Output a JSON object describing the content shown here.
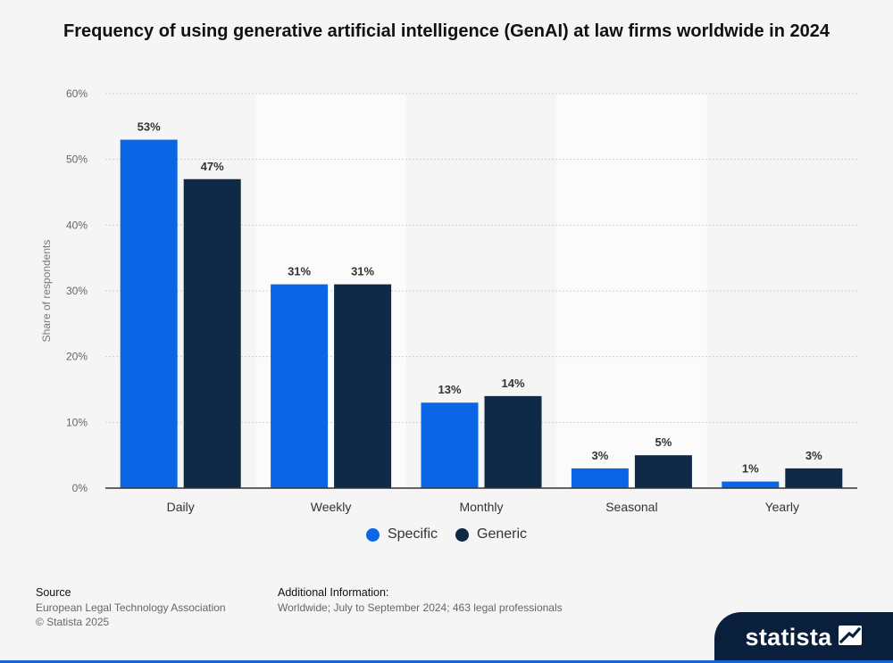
{
  "title": "Frequency of using generative artificial intelligence (GenAI) at law firms worldwide in 2024",
  "chart_data": {
    "type": "bar",
    "categories": [
      "Daily",
      "Weekly",
      "Monthly",
      "Seasonal",
      "Yearly"
    ],
    "series": [
      {
        "name": "Specific",
        "values": [
          53,
          31,
          13,
          3,
          1
        ],
        "color": "#0a66e4"
      },
      {
        "name": "Generic",
        "values": [
          47,
          31,
          14,
          5,
          3
        ],
        "color": "#0e2a47"
      }
    ],
    "ylabel": "Share of respondents",
    "ylim": [
      0,
      60
    ],
    "yticks": [
      "0%",
      "10%",
      "20%",
      "30%",
      "40%",
      "50%",
      "60%"
    ],
    "value_suffix": "%",
    "grid": true,
    "legend_position": "bottom"
  },
  "footer": {
    "source_header": "Source",
    "source_lines": [
      "European Legal Technology Association",
      "© Statista 2025"
    ],
    "info_header": "Additional Information:",
    "info_text": "Worldwide; July to September 2024; 463 legal professionals"
  },
  "brand": {
    "name": "statista"
  }
}
